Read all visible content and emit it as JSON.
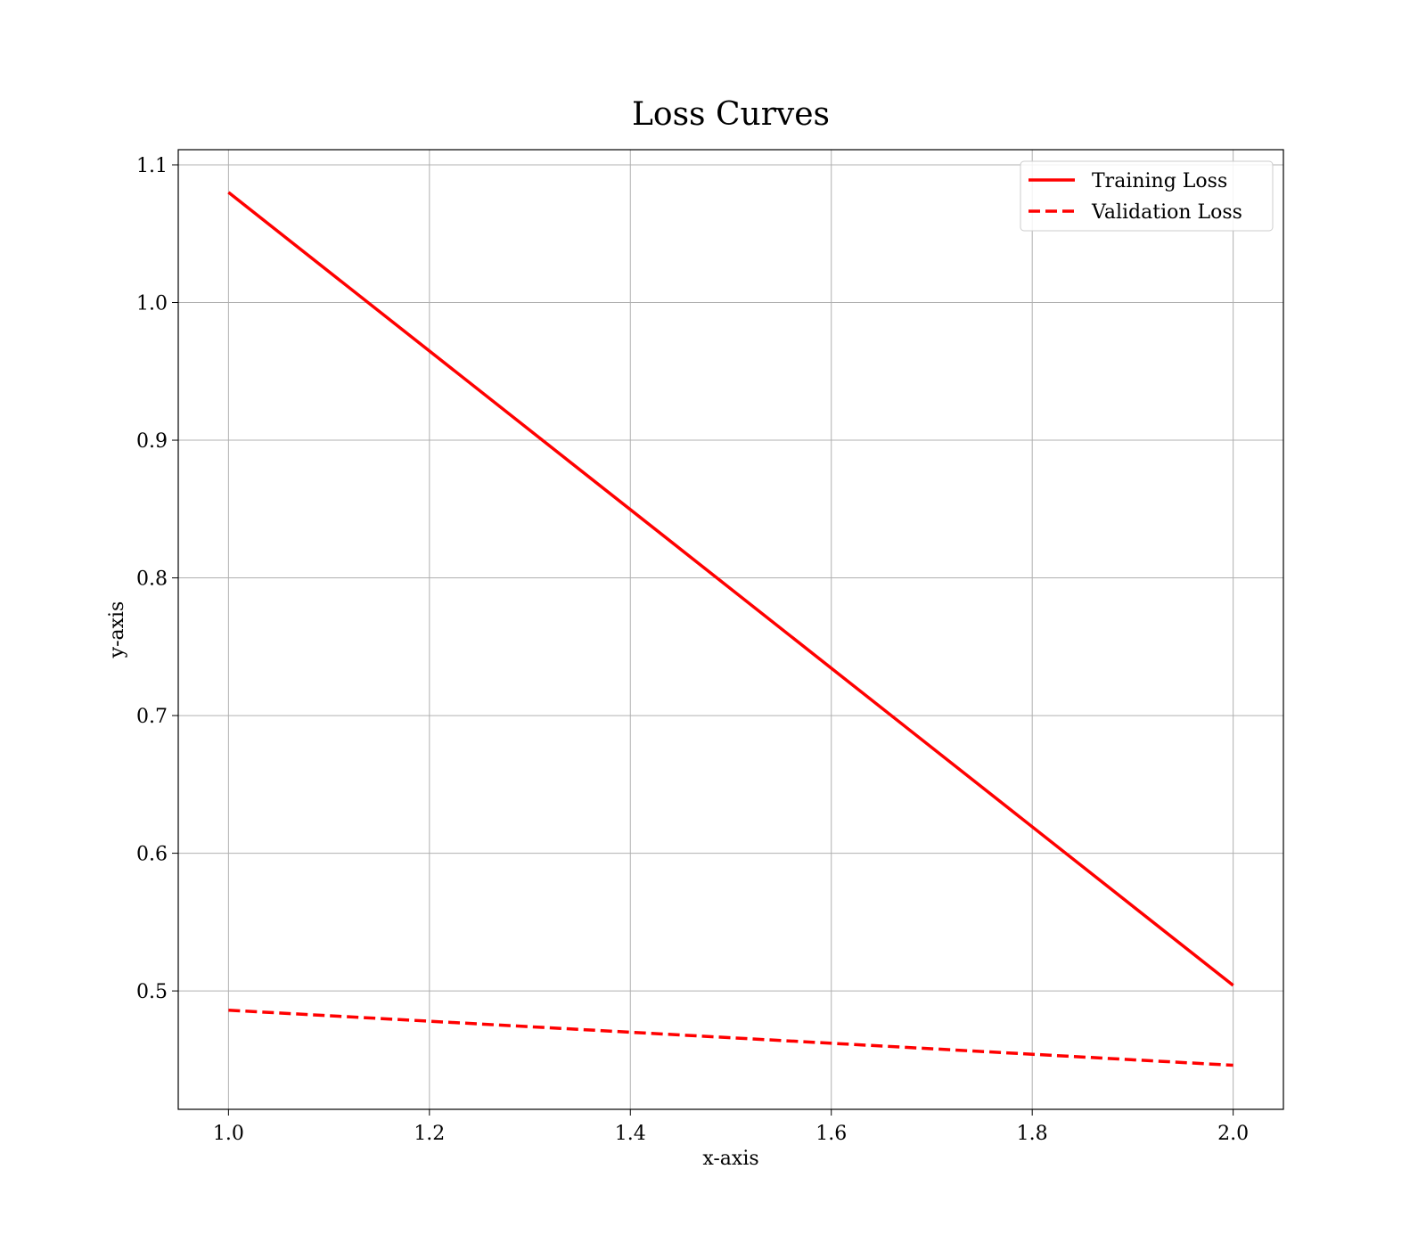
{
  "chart_data": {
    "type": "line",
    "title": "Loss Curves",
    "xlabel": "x-axis",
    "ylabel": "y-axis",
    "xlim": [
      0.95,
      2.05
    ],
    "ylim": [
      0.414,
      1.111
    ],
    "x_ticks": [
      "1.0",
      "1.2",
      "1.4",
      "1.6",
      "1.8",
      "2.0"
    ],
    "y_ticks": [
      "0.5",
      "0.6",
      "0.7",
      "0.8",
      "0.9",
      "1.0",
      "1.1"
    ],
    "grid": true,
    "legend_position": "top-right",
    "series": [
      {
        "name": "Training Loss",
        "color": "#ff0000",
        "style": "solid",
        "x": [
          1.0,
          2.0
        ],
        "y": [
          1.08,
          0.504
        ]
      },
      {
        "name": "Validation Loss",
        "color": "#ff0000",
        "style": "dashed",
        "x": [
          1.0,
          2.0
        ],
        "y": [
          0.486,
          0.446
        ]
      }
    ]
  }
}
